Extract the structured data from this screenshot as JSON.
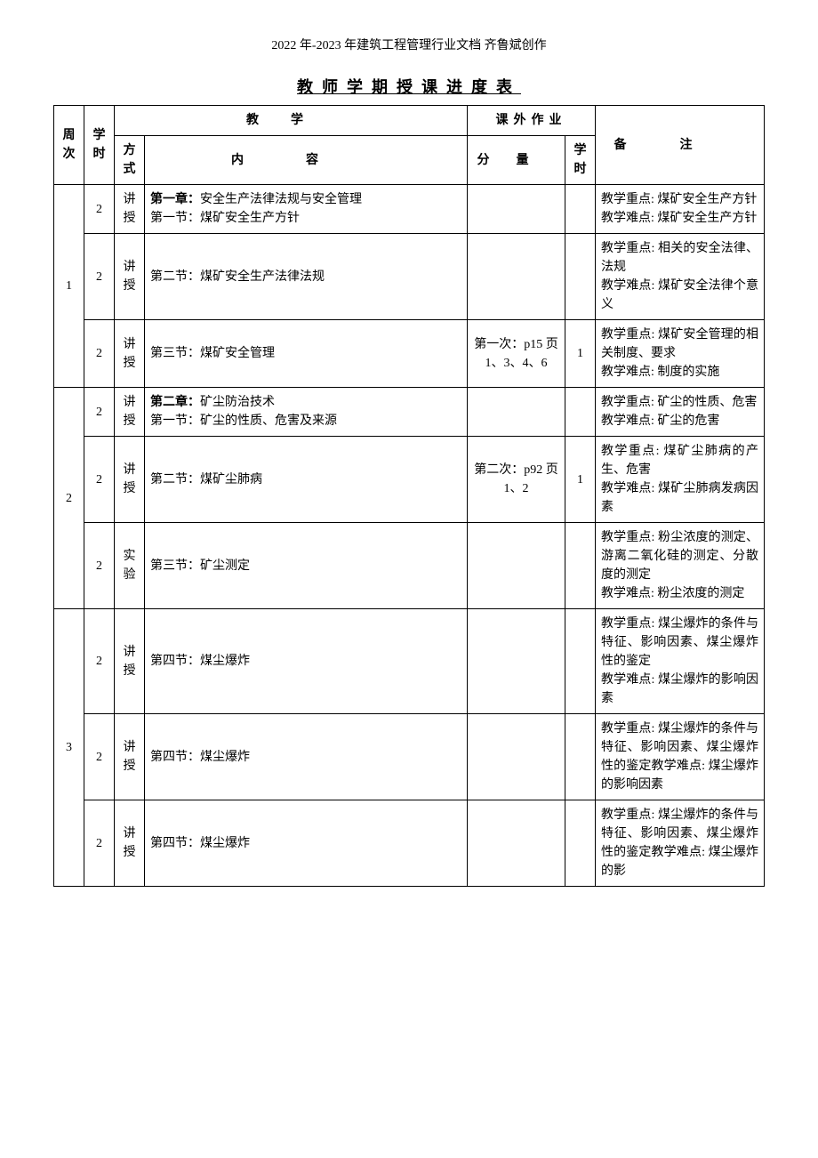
{
  "header_text": "2022 年-2023 年建筑工程管理行业文档 齐鲁斌创作",
  "title": "教师学期授课进度表",
  "headers": {
    "week": "周次",
    "hours": "学时",
    "teaching": "教学",
    "method": "方式",
    "content": "内容",
    "homework": "课外作业",
    "hw_amount": "分量",
    "hw_hours": "学时",
    "notes": "备注"
  },
  "rows": [
    {
      "week": "1",
      "week_rowspan": 3,
      "cells": [
        {
          "hours": "2",
          "method": "讲授",
          "content_prefix": "第一章：",
          "content_rest": "安全生产法律法规与安全管理\n第一节：煤矿安全生产方针",
          "hw_amount": "",
          "hw_hours": "",
          "notes": "教学重点: 煤矿安全生产方针\n教学难点: 煤矿安全生产方针"
        },
        {
          "hours": "2",
          "method": "讲授",
          "content_prefix": "",
          "content_rest": "第二节：煤矿安全生产法律法规",
          "hw_amount": "",
          "hw_hours": "",
          "notes": "教学重点: 相关的安全法律、法规\n教学难点: 煤矿安全法律个意义"
        },
        {
          "hours": "2",
          "method": "讲授",
          "content_prefix": "",
          "content_rest": "第三节：煤矿安全管理",
          "hw_amount": "第一次：p15 页 1、3、4、6",
          "hw_hours": "1",
          "notes": "教学重点: 煤矿安全管理的相关制度、要求\n教学难点: 制度的实施"
        }
      ]
    },
    {
      "week": "2",
      "week_rowspan": 3,
      "cells": [
        {
          "hours": "2",
          "method": "讲授",
          "content_prefix": "第二章：",
          "content_rest": "矿尘防治技术\n第一节：矿尘的性质、危害及来源",
          "hw_amount": "",
          "hw_hours": "",
          "notes": "教学重点: 矿尘的性质、危害\n教学难点: 矿尘的危害"
        },
        {
          "hours": "2",
          "method": "讲授",
          "content_prefix": "",
          "content_rest": "第二节：煤矿尘肺病",
          "hw_amount": "第二次：p92 页 1、2",
          "hw_hours": "1",
          "notes": "教学重点: 煤矿尘肺病的产生、危害\n教学难点: 煤矿尘肺病发病因素"
        },
        {
          "hours": "2",
          "method": "实验",
          "content_prefix": "",
          "content_rest": "第三节：矿尘测定",
          "hw_amount": "",
          "hw_hours": "",
          "notes": "教学重点: 粉尘浓度的测定、游离二氧化硅的测定、分散度的测定\n教学难点: 粉尘浓度的测定"
        }
      ]
    },
    {
      "week": "3",
      "week_rowspan": 3,
      "cells": [
        {
          "hours": "2",
          "method": "讲授",
          "content_prefix": "",
          "content_rest": "第四节：煤尘爆炸",
          "hw_amount": "",
          "hw_hours": "",
          "notes": "教学重点: 煤尘爆炸的条件与特征、影响因素、煤尘爆炸性的鉴定\n教学难点: 煤尘爆炸的影响因素"
        },
        {
          "hours": "2",
          "method": "讲授",
          "content_prefix": "",
          "content_rest": "第四节：煤尘爆炸",
          "hw_amount": "",
          "hw_hours": "",
          "notes": "教学重点: 煤尘爆炸的条件与特征、影响因素、煤尘爆炸性的鉴定教学难点: 煤尘爆炸的影响因素"
        },
        {
          "hours": "2",
          "method": "讲授",
          "content_prefix": "",
          "content_rest": "第四节：煤尘爆炸",
          "hw_amount": "",
          "hw_hours": "",
          "notes": "教学重点: 煤尘爆炸的条件与特征、影响因素、煤尘爆炸性的鉴定教学难点: 煤尘爆炸的影"
        }
      ]
    }
  ]
}
